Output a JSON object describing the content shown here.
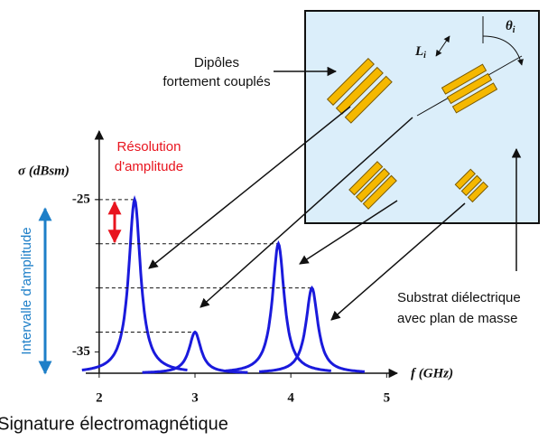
{
  "labels": {
    "dipoles": [
      "Dipôles",
      "fortement couplés"
    ],
    "resolution": [
      "Résolution",
      "d'amplitude"
    ],
    "interval": "Intervalle d'amplitude",
    "substrate": [
      "Substrat diélectrique",
      "avec plan de masse"
    ],
    "theta": "θ",
    "theta_sub": "i",
    "length": "L",
    "length_sub": "i",
    "signature": "Signature électromagnétique"
  },
  "chart_data": {
    "type": "line",
    "y_label": "σ (dBsm)",
    "x_label": "f (GHz)",
    "peaks": {
      "x": [
        2.37,
        3.0,
        3.87,
        4.22
      ],
      "values": [
        -25,
        -33.7,
        -27.9,
        -30.8
      ]
    },
    "xlim": [
      1.86,
      5.11
    ],
    "ylim": [
      -36.4,
      -20.5
    ],
    "xticks": [
      2,
      3,
      4,
      5
    ],
    "yticks": [
      -25,
      -35
    ],
    "color": "#1a1adc"
  }
}
